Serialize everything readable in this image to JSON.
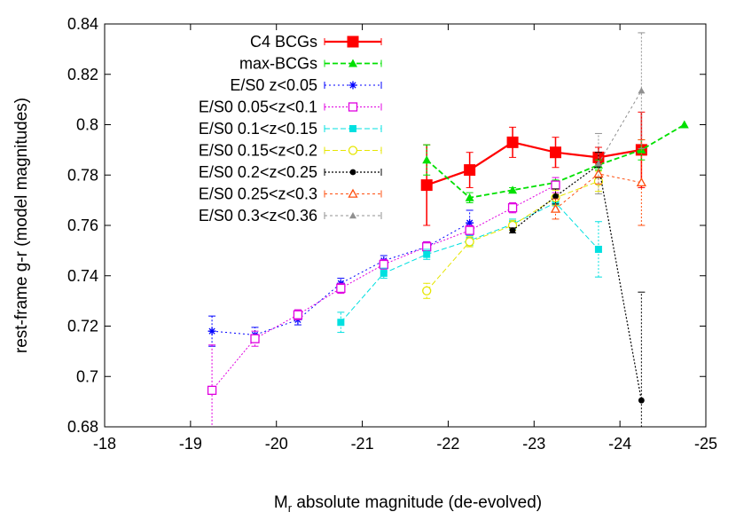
{
  "chart_data": {
    "type": "scatter",
    "xlabel_main": "M",
    "xlabel_sub": "r",
    "xlabel_rest": " absolute magnitude (de-evolved)",
    "ylabel": "rest-frame g-r (model magnitudes)",
    "xlim": [
      -18,
      -25
    ],
    "ylim": [
      0.68,
      0.84
    ],
    "x_ticks": [
      -18,
      -19,
      -20,
      -21,
      -22,
      -23,
      -24,
      -25
    ],
    "x_tick_labels": [
      "-18",
      "-19",
      "-20",
      "-21",
      "-22",
      "-23",
      "-24",
      "-25"
    ],
    "y_ticks": [
      0.68,
      0.7,
      0.72,
      0.74,
      0.76,
      0.78,
      0.8,
      0.82,
      0.84
    ],
    "y_tick_labels": [
      "0.68",
      "0.7",
      "0.72",
      "0.74",
      "0.76",
      "0.78",
      "0.8",
      "0.82",
      "0.84"
    ],
    "grid": false,
    "legend_position": "top-left",
    "series": [
      {
        "name": "C4 BCGs",
        "color": "#ff0000",
        "marker": "filled-square",
        "dash": "none",
        "width": 2.2,
        "size": 13,
        "points": [
          [
            -21.75,
            0.776,
            0.016
          ],
          [
            -22.25,
            0.782,
            0.007
          ],
          [
            -22.75,
            0.793,
            0.006
          ],
          [
            -23.25,
            0.789,
            0.006
          ],
          [
            -23.75,
            0.787,
            0.004
          ],
          [
            -24.25,
            0.79,
            0.015
          ]
        ]
      },
      {
        "name": "max-BCGs",
        "color": "#00e000",
        "marker": "filled-triangle",
        "dash": "6,3",
        "width": 1.8,
        "size": 10,
        "points": [
          [
            -21.75,
            0.786,
            0.006
          ],
          [
            -22.25,
            0.771,
            0.002
          ],
          [
            -22.75,
            0.774,
            0.001
          ],
          [
            -23.25,
            0.777,
            0.001
          ],
          [
            -23.75,
            0.784,
            0.002
          ],
          [
            -24.25,
            0.79,
            0.004
          ],
          [
            -24.75,
            0.8,
            0.0
          ]
        ]
      },
      {
        "name": "E/S0 z<0.05",
        "color": "#0000ff",
        "marker": "star",
        "dash": "2,3",
        "width": 1,
        "size": 9,
        "points": [
          [
            -19.25,
            0.718,
            0.006
          ],
          [
            -19.75,
            0.7165,
            0.003
          ],
          [
            -20.25,
            0.7225,
            0.002
          ],
          [
            -20.75,
            0.737,
            0.002
          ],
          [
            -21.25,
            0.746,
            0.002
          ],
          [
            -21.75,
            0.7515,
            0.002
          ],
          [
            -22.25,
            0.761,
            0.005
          ]
        ]
      },
      {
        "name": "E/S0 0.05<z<0.1",
        "color": "#e000e0",
        "marker": "open-square",
        "dash": "2,2",
        "width": 1,
        "size": 9,
        "points": [
          [
            -19.25,
            0.6945,
            0.018
          ],
          [
            -19.75,
            0.715,
            0.003
          ],
          [
            -20.25,
            0.7245,
            0.002
          ],
          [
            -20.75,
            0.735,
            0.002
          ],
          [
            -21.25,
            0.7445,
            0.002
          ],
          [
            -21.75,
            0.7515,
            0.002
          ],
          [
            -22.25,
            0.758,
            0.002
          ],
          [
            -22.75,
            0.767,
            0.002
          ],
          [
            -23.25,
            0.776,
            0.003
          ]
        ]
      },
      {
        "name": "E/S0 0.1<z<0.15",
        "color": "#00e0e0",
        "marker": "filled-square",
        "dash": "6,3",
        "width": 1,
        "size": 8,
        "points": [
          [
            -20.75,
            0.7215,
            0.004
          ],
          [
            -21.25,
            0.741,
            0.002
          ],
          [
            -21.75,
            0.7485,
            0.002
          ],
          [
            -22.25,
            0.754,
            0.002
          ],
          [
            -22.75,
            0.7605,
            0.002
          ],
          [
            -23.25,
            0.769,
            0.003
          ],
          [
            -23.75,
            0.7505,
            0.011
          ]
        ]
      },
      {
        "name": "E/S0 0.15<z<0.2",
        "color": "#e6e600",
        "marker": "open-circle",
        "dash": "6,3",
        "width": 1,
        "size": 9,
        "points": [
          [
            -21.75,
            0.734,
            0.003
          ],
          [
            -22.25,
            0.7535,
            0.002
          ],
          [
            -22.75,
            0.76,
            0.002
          ],
          [
            -23.25,
            0.771,
            0.003
          ],
          [
            -23.75,
            0.7775,
            0.004
          ]
        ]
      },
      {
        "name": "E/S0 0.2<z<0.25",
        "color": "#000000",
        "marker": "filled-circle",
        "dash": "2,2",
        "width": 1.2,
        "size": 8,
        "points": [
          [
            -22.75,
            0.758,
            0.001
          ],
          [
            -23.25,
            0.7715,
            0.003
          ],
          [
            -23.75,
            0.784,
            0.005
          ],
          [
            -24.25,
            0.6905,
            0.043
          ]
        ]
      },
      {
        "name": "E/S0 0.25<z<0.3",
        "color": "#ff5010",
        "marker": "open-triangle",
        "dash": "3,3",
        "width": 1,
        "size": 9,
        "points": [
          [
            -23.25,
            0.7665,
            0.004
          ],
          [
            -23.75,
            0.7805,
            0.004
          ],
          [
            -24.25,
            0.777,
            0.017
          ]
        ]
      },
      {
        "name": "E/S0 0.3<z<0.36",
        "color": "#909090",
        "marker": "filled-triangle",
        "dash": "3,3",
        "width": 1,
        "size": 8,
        "points": [
          [
            -23.75,
            0.7845,
            0.012
          ],
          [
            -24.25,
            0.8135,
            0.023
          ]
        ]
      }
    ]
  }
}
